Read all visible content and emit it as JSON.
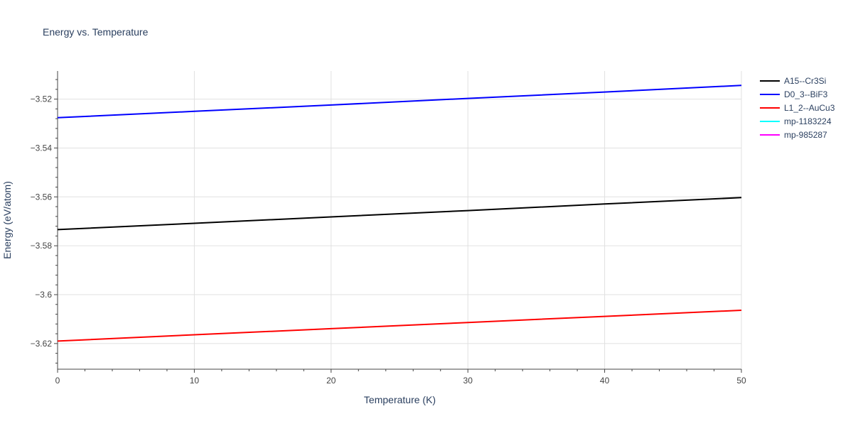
{
  "chart_data": {
    "type": "line",
    "title": "Energy vs. Temperature",
    "xlabel": "Temperature (K)",
    "ylabel": "Energy (eV/atom)",
    "xlim": [
      0,
      50
    ],
    "ylim": [
      -3.6305,
      -3.5085
    ],
    "x_ticks": [
      0,
      10,
      20,
      30,
      40,
      50
    ],
    "x_tick_labels": [
      "0",
      "10",
      "20",
      "30",
      "40",
      "50"
    ],
    "y_ticks": [
      -3.62,
      -3.6,
      -3.58,
      -3.56,
      -3.54,
      -3.52
    ],
    "y_tick_labels": [
      "−3.62",
      "−3.6",
      "−3.58",
      "−3.56",
      "−3.54",
      "−3.52"
    ],
    "grid": true,
    "legend_position": "top-right, outside plot",
    "series": [
      {
        "name": "A15--Cr3Si",
        "color": "#000000",
        "x": [
          0,
          10,
          20,
          30,
          40,
          50
        ],
        "values": [
          -3.5734,
          -3.5708,
          -3.5682,
          -3.5656,
          -3.5629,
          -3.5603
        ]
      },
      {
        "name": "D0_3--BiF3",
        "color": "#0000ff",
        "x": [
          0,
          10,
          20,
          30,
          40,
          50
        ],
        "values": [
          -3.5276,
          -3.525,
          -3.5224,
          -3.5197,
          -3.5171,
          -3.5144
        ]
      },
      {
        "name": "L1_2--AuCu3",
        "color": "#ff0000",
        "x": [
          0,
          10,
          20,
          30,
          40,
          50
        ],
        "values": [
          -3.619,
          -3.6164,
          -3.6139,
          -3.6114,
          -3.6089,
          -3.6064
        ]
      },
      {
        "name": "mp-1183224",
        "color": "#00ffff",
        "x": [],
        "values": []
      },
      {
        "name": "mp-985287",
        "color": "#ff00ff",
        "x": [],
        "values": []
      }
    ]
  }
}
